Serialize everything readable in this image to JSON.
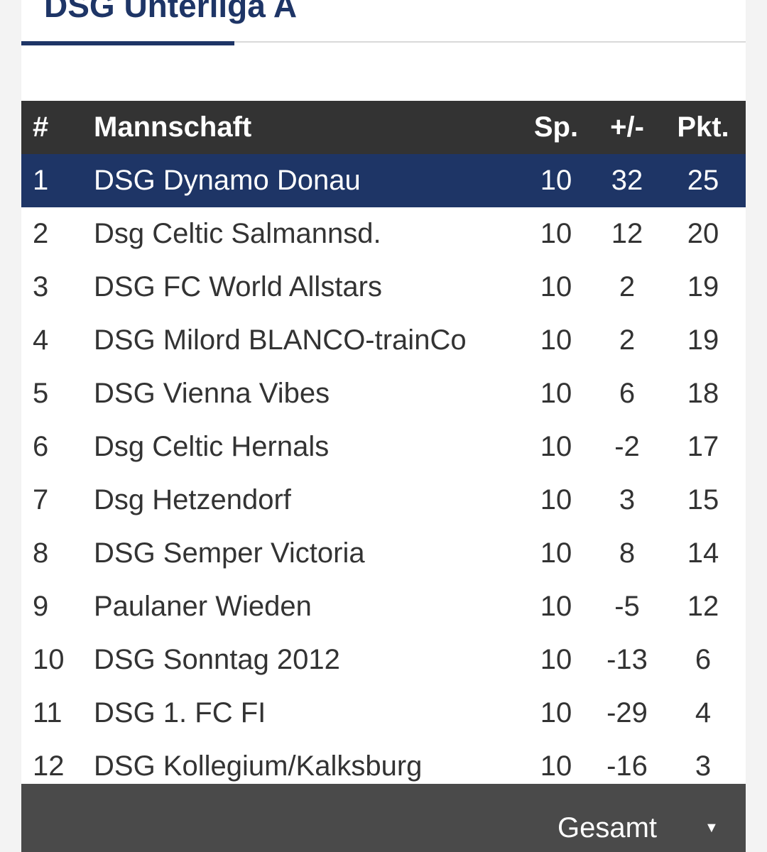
{
  "header": {
    "title": "DSG Unterliga A"
  },
  "table": {
    "columns": {
      "rank": "#",
      "team": "Mannschaft",
      "played": "Sp.",
      "goal_diff": "+/-",
      "points": "Pkt."
    },
    "highlight_color": "#1e3566",
    "header_color": "#333333",
    "rows": [
      {
        "rank": "1",
        "team": "DSG Dynamo Donau",
        "played": "10",
        "goal_diff": "32",
        "points": "25"
      },
      {
        "rank": "2",
        "team": "Dsg Celtic Salmannsd.",
        "played": "10",
        "goal_diff": "12",
        "points": "20"
      },
      {
        "rank": "3",
        "team": "DSG FC World Allstars",
        "played": "10",
        "goal_diff": "2",
        "points": "19"
      },
      {
        "rank": "4",
        "team": "DSG Milord BLANCO-trainCo",
        "played": "10",
        "goal_diff": "2",
        "points": "19"
      },
      {
        "rank": "5",
        "team": "DSG Vienna Vibes",
        "played": "10",
        "goal_diff": "6",
        "points": "18"
      },
      {
        "rank": "6",
        "team": "Dsg Celtic Hernals",
        "played": "10",
        "goal_diff": "-2",
        "points": "17"
      },
      {
        "rank": "7",
        "team": "Dsg Hetzendorf",
        "played": "10",
        "goal_diff": "3",
        "points": "15"
      },
      {
        "rank": "8",
        "team": "DSG Semper Victoria",
        "played": "10",
        "goal_diff": "8",
        "points": "14"
      },
      {
        "rank": "9",
        "team": "Paulaner Wieden",
        "played": "10",
        "goal_diff": "-5",
        "points": "12"
      },
      {
        "rank": "10",
        "team": "DSG Sonntag 2012",
        "played": "10",
        "goal_diff": "-13",
        "points": "6"
      },
      {
        "rank": "11",
        "team": "DSG 1. FC FI",
        "played": "10",
        "goal_diff": "-29",
        "points": "4"
      },
      {
        "rank": "12",
        "team": "DSG Kollegium/Kalksburg",
        "played": "10",
        "goal_diff": "-16",
        "points": "3"
      }
    ]
  },
  "footer": {
    "view_select_value": "Gesamt",
    "view_select_icon": "chevron-down-icon"
  }
}
